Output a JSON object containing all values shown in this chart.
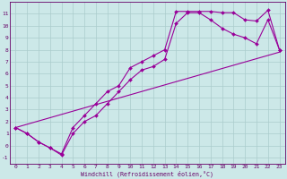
{
  "xlabel": "Windchill (Refroidissement éolien,°C)",
  "bg_color": "#cce8e8",
  "line_color": "#990099",
  "grid_color": "#aacccc",
  "xlim": [
    -0.5,
    23.5
  ],
  "ylim": [
    -1.5,
    12.0
  ],
  "xticks": [
    0,
    1,
    2,
    3,
    4,
    5,
    6,
    7,
    8,
    9,
    10,
    11,
    12,
    13,
    14,
    15,
    16,
    17,
    18,
    19,
    20,
    21,
    22,
    23
  ],
  "yticks": [
    -1,
    0,
    1,
    2,
    3,
    4,
    5,
    6,
    7,
    8,
    9,
    10,
    11
  ],
  "line1_x": [
    0,
    1,
    2,
    3,
    4,
    5,
    6,
    7,
    8,
    9,
    10,
    11,
    12,
    13,
    14,
    15,
    16,
    17,
    18,
    19,
    20,
    21,
    22,
    23
  ],
  "line1_y": [
    1.5,
    1.0,
    0.3,
    -0.2,
    -0.7,
    1.5,
    2.5,
    3.5,
    4.5,
    5.0,
    6.5,
    7.0,
    7.5,
    8.0,
    11.2,
    11.2,
    11.2,
    11.2,
    11.1,
    11.1,
    10.5,
    10.4,
    11.3,
    8.0
  ],
  "line2_x": [
    0,
    1,
    2,
    3,
    4,
    5,
    6,
    7,
    8,
    9,
    10,
    11,
    12,
    13,
    14,
    15,
    16,
    17,
    18,
    19,
    20,
    21,
    22,
    23
  ],
  "line2_y": [
    1.5,
    1.0,
    0.3,
    -0.2,
    -0.8,
    1.0,
    2.0,
    2.5,
    3.5,
    4.5,
    5.5,
    6.3,
    6.6,
    7.2,
    10.2,
    11.1,
    11.1,
    10.5,
    9.8,
    9.3,
    9.0,
    8.5,
    10.5,
    8.0
  ],
  "line3_x": [
    0,
    23
  ],
  "line3_y": [
    1.5,
    7.8
  ],
  "marker": "D",
  "marker_size": 2.0,
  "line_width": 0.8,
  "tick_fontsize": 4.5,
  "xlabel_fontsize": 4.8,
  "spine_color": "#660066",
  "tick_color": "#660066"
}
